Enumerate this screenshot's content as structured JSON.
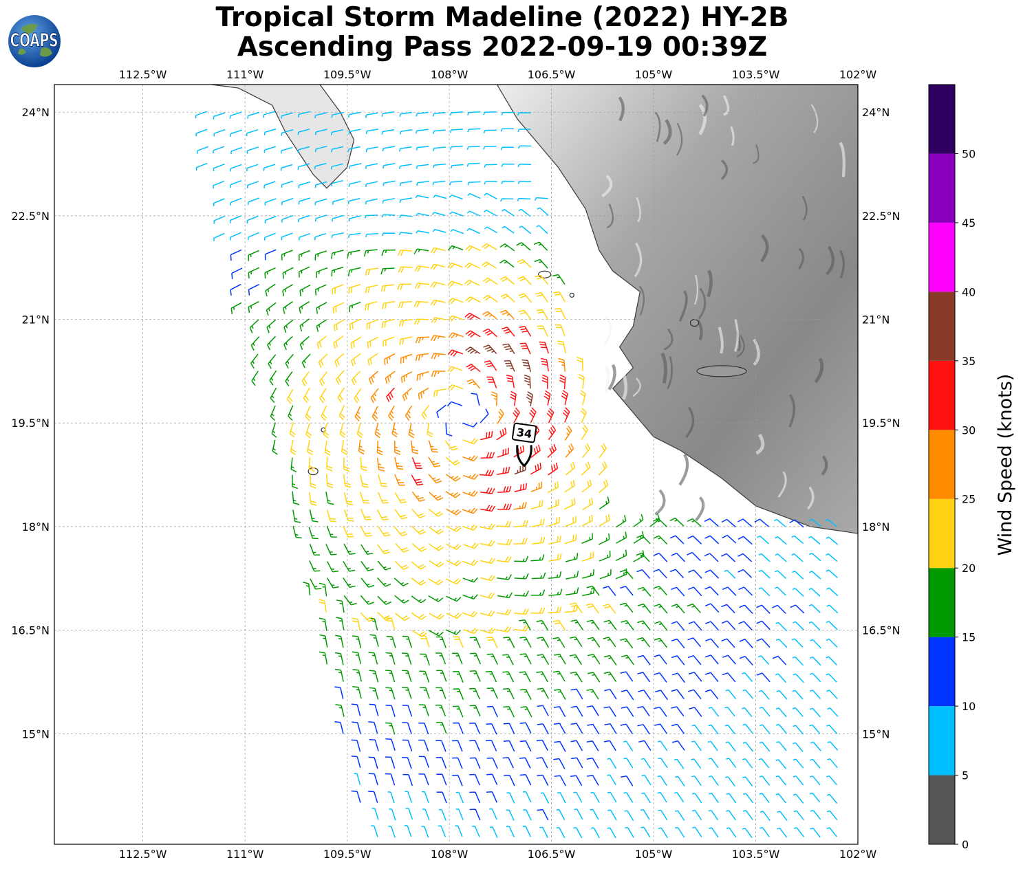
{
  "title": {
    "line1": "Tropical Storm Madeline (2022) HY-2B",
    "line2": "Ascending Pass 2022-09-19 00:39Z"
  },
  "logo": {
    "text": "COAPS",
    "icon": "globe-icon"
  },
  "map": {
    "lon_range": [
      -113.8,
      -102.0
    ],
    "lat_range": [
      13.4,
      24.4
    ],
    "lon_ticks": [
      "112.5°W",
      "111°W",
      "109.5°W",
      "108°W",
      "106.5°W",
      "105°W",
      "103.5°W",
      "102°W"
    ],
    "lon_tick_values": [
      -112.5,
      -111.0,
      -109.5,
      -108.0,
      -106.5,
      -105.0,
      -103.5,
      -102.0
    ],
    "lat_ticks": [
      "15°N",
      "16.5°N",
      "18°N",
      "19.5°N",
      "21°N",
      "22.5°N",
      "24°N"
    ],
    "lat_tick_values": [
      15.0,
      16.5,
      18.0,
      19.5,
      21.0,
      22.5,
      24.0
    ],
    "gridlines": true,
    "storm_center": {
      "lon": -107.8,
      "lat": 19.6
    },
    "storm_marker": {
      "label": "34",
      "lon": -106.9,
      "lat": 19.1
    },
    "terrain": "grayscale elevation over Mexico",
    "swath": "HY-2B scatterometer wind barbs"
  },
  "colorbar": {
    "label": "Wind Speed (knots)",
    "tick_labels": [
      "0",
      "5",
      "10",
      "15",
      "20",
      "25",
      "30",
      "35",
      "40",
      "45",
      "50"
    ],
    "bins": [
      {
        "min": 0,
        "max": 5,
        "color": "#555555"
      },
      {
        "min": 5,
        "max": 10,
        "color": "#00bfff"
      },
      {
        "min": 10,
        "max": 15,
        "color": "#0033ff"
      },
      {
        "min": 15,
        "max": 20,
        "color": "#009900"
      },
      {
        "min": 20,
        "max": 25,
        "color": "#ffd311"
      },
      {
        "min": 25,
        "max": 30,
        "color": "#ff8c00"
      },
      {
        "min": 30,
        "max": 35,
        "color": "#ff1111"
      },
      {
        "min": 35,
        "max": 40,
        "color": "#883c27"
      },
      {
        "min": 40,
        "max": 45,
        "color": "#ff00ff"
      },
      {
        "min": 45,
        "max": 50,
        "color": "#8800bb"
      },
      {
        "min": 50,
        "max": 55,
        "color": "#2d0060"
      }
    ]
  }
}
